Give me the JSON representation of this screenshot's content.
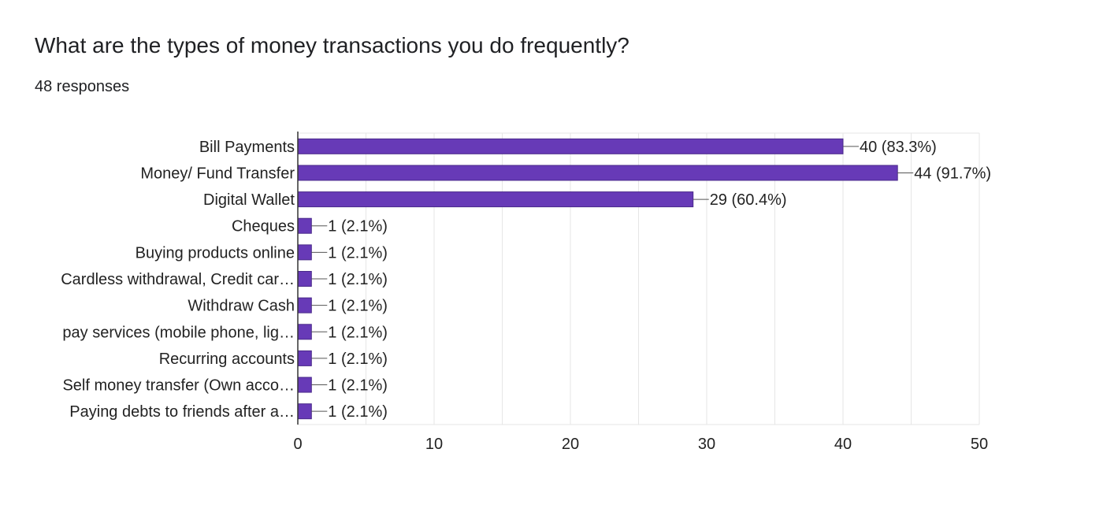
{
  "question": {
    "title": "What are the types of money transactions you do frequently?",
    "responses": "48 responses"
  },
  "colors": {
    "bar": "#673ab7",
    "bar_border": "#4a2a8a",
    "grid": "#e6e6e6",
    "axis": "#333333",
    "text": "#222222"
  },
  "chart_data": {
    "type": "bar",
    "orientation": "horizontal",
    "title": "",
    "xlabel": "",
    "ylabel": "",
    "xlim": [
      0,
      50
    ],
    "x_ticks": [
      0,
      10,
      20,
      30,
      40,
      50
    ],
    "grid": true,
    "categories": [
      "Bill Payments",
      "Money/ Fund Transfer",
      "Digital Wallet",
      "Cheques",
      "Buying products online",
      "Cardless withdrawal, Credit car…",
      "Withdraw Cash",
      "pay services (mobile phone, lig…",
      "Recurring accounts",
      "Self money transfer (Own acco…",
      "Paying debts to friends after a…"
    ],
    "values": [
      40,
      44,
      29,
      1,
      1,
      1,
      1,
      1,
      1,
      1,
      1
    ],
    "data_labels": [
      "40 (83.3%)",
      "44 (91.7%)",
      "29 (60.4%)",
      "1 (2.1%)",
      "1 (2.1%)",
      "1 (2.1%)",
      "1 (2.1%)",
      "1 (2.1%)",
      "1 (2.1%)",
      "1 (2.1%)",
      "1 (2.1%)"
    ]
  }
}
